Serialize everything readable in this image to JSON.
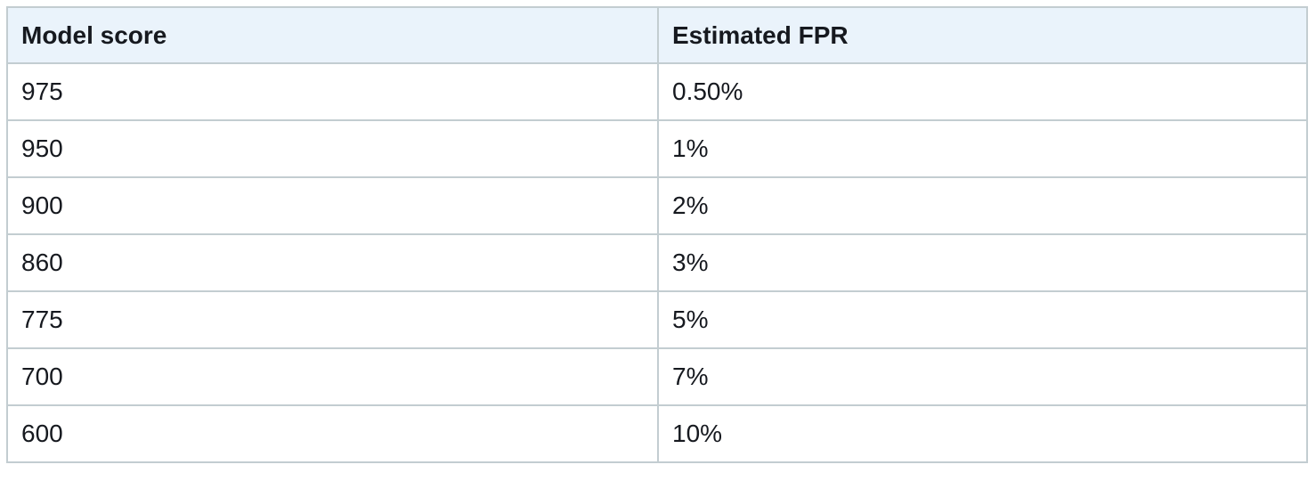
{
  "table": {
    "headers": [
      "Model score",
      "Estimated FPR"
    ],
    "rows": [
      [
        "975",
        "0.50%"
      ],
      [
        "950",
        "1%"
      ],
      [
        "900",
        "2%"
      ],
      [
        "860",
        "3%"
      ],
      [
        "775",
        "5%"
      ],
      [
        "700",
        "7%"
      ],
      [
        "600",
        "10%"
      ]
    ]
  },
  "colors": {
    "header_background": "#eaf3fb",
    "border": "#c3cdd1",
    "text": "#16191f"
  }
}
